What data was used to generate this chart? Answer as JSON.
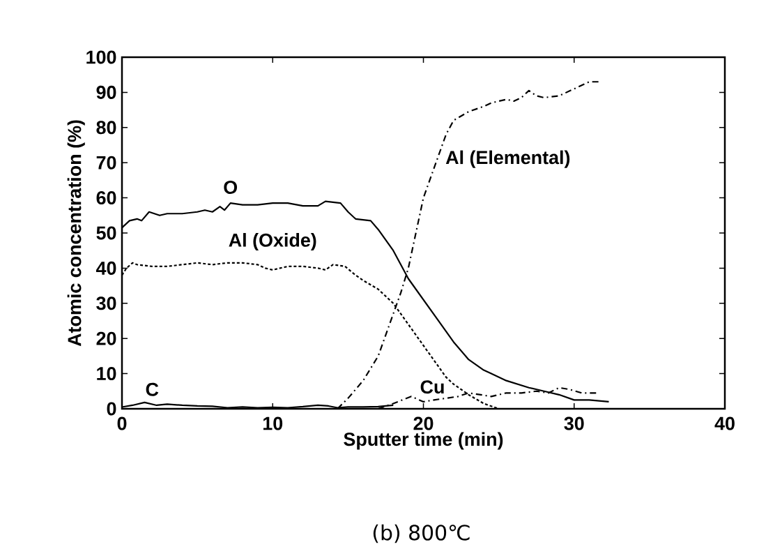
{
  "chart_data": {
    "type": "line",
    "xlabel": "Sputter time (min)",
    "ylabel": "Atomic concentration (%)",
    "xlim": [
      0,
      40
    ],
    "ylim": [
      0,
      100
    ],
    "xticks": [
      0,
      10,
      20,
      30,
      40
    ],
    "yticks": [
      0,
      10,
      20,
      30,
      40,
      50,
      60,
      70,
      80,
      90,
      100
    ],
    "grid": false,
    "marker": "none",
    "annotations": [
      "(b) 800℃"
    ],
    "series": [
      {
        "name": "O",
        "color": "#000000",
        "line_style": "solid",
        "x": [
          0,
          0.5,
          1,
          1.3,
          1.8,
          2.5,
          3,
          4,
          5,
          5.5,
          6,
          6.5,
          6.8,
          7.2,
          8,
          9,
          10,
          11,
          12,
          13,
          13.5,
          14.5,
          15,
          15.5,
          16.5,
          17,
          18,
          19,
          20,
          20.5,
          21,
          22,
          23,
          24,
          24.5,
          25.5,
          27,
          28,
          28.5,
          29,
          30,
          31,
          32.3
        ],
        "values": [
          51.5,
          53.5,
          54,
          53.5,
          56,
          55,
          55.5,
          55.5,
          56,
          56.5,
          56,
          57.5,
          56.5,
          58.5,
          58,
          58,
          58.5,
          58.5,
          57.7,
          57.7,
          59,
          58.5,
          56,
          54,
          53.5,
          51,
          45,
          37,
          31,
          28,
          25,
          19,
          14,
          11,
          10,
          8,
          6,
          5,
          4.5,
          4,
          2.5,
          2.5,
          2
        ]
      },
      {
        "name": "Al (Oxide)",
        "color": "#000000",
        "line_style": "dotted",
        "x": [
          0,
          0.3,
          0.7,
          1,
          2,
          3,
          4,
          5,
          6,
          7,
          8,
          9,
          9.5,
          10,
          11,
          12,
          13,
          13.5,
          14,
          14.8,
          15.5,
          16,
          17,
          18,
          18.5,
          19,
          19.5,
          20,
          20.5,
          21,
          21.5,
          22,
          23,
          24,
          25
        ],
        "values": [
          38,
          40,
          41.5,
          41,
          40.5,
          40.5,
          41,
          41.5,
          41,
          41.5,
          41.5,
          41,
          40,
          39.5,
          40.5,
          40.5,
          40,
          39.5,
          41,
          40.5,
          38,
          36.5,
          34,
          30,
          27,
          24,
          21,
          18,
          15,
          12,
          9,
          7,
          4,
          1.5,
          0
        ]
      },
      {
        "name": "Al (Elemental)",
        "color": "#000000",
        "line_style": "dashed",
        "x": [
          14.3,
          15,
          16,
          17,
          18,
          18.5,
          19,
          19.5,
          20,
          20.5,
          21,
          21.5,
          22,
          23,
          24,
          24.5,
          25.5,
          26,
          26.5,
          27,
          27.5,
          28,
          29,
          30,
          31,
          31.7
        ],
        "values": [
          0,
          3,
          8,
          15,
          27,
          33,
          40,
          50,
          60,
          66,
          72,
          78,
          82,
          84.5,
          86,
          87,
          88,
          87.5,
          88.5,
          90.5,
          89,
          88.5,
          89,
          91,
          93,
          93
        ]
      },
      {
        "name": "C",
        "color": "#000000",
        "line_style": "solid",
        "x": [
          0,
          0.7,
          1.5,
          2.3,
          3,
          4,
          5,
          6,
          7,
          8,
          9,
          10,
          11,
          12,
          13,
          13.7,
          14.3,
          15,
          16,
          17,
          18
        ],
        "values": [
          0.5,
          1,
          1.8,
          1,
          1.3,
          1,
          0.8,
          0.7,
          0.3,
          0.5,
          0.3,
          0.4,
          0.3,
          0.6,
          1,
          0.8,
          0.3,
          0.5,
          0.5,
          0.6,
          1
        ]
      },
      {
        "name": "Cu",
        "color": "#000000",
        "line_style": "dashed",
        "x": [
          17,
          18,
          18.6,
          19.2,
          20,
          20.7,
          21.5,
          22.3,
          23,
          23.8,
          24.5,
          25.5,
          26.5,
          27.5,
          28.3,
          29,
          29.7,
          30.5,
          31.5
        ],
        "values": [
          0,
          1.5,
          2.5,
          3.5,
          2,
          2.5,
          3,
          3.5,
          4.5,
          4,
          3.5,
          4.5,
          4.5,
          5,
          4.5,
          6,
          5.5,
          4.5,
          4.5
        ]
      }
    ]
  }
}
